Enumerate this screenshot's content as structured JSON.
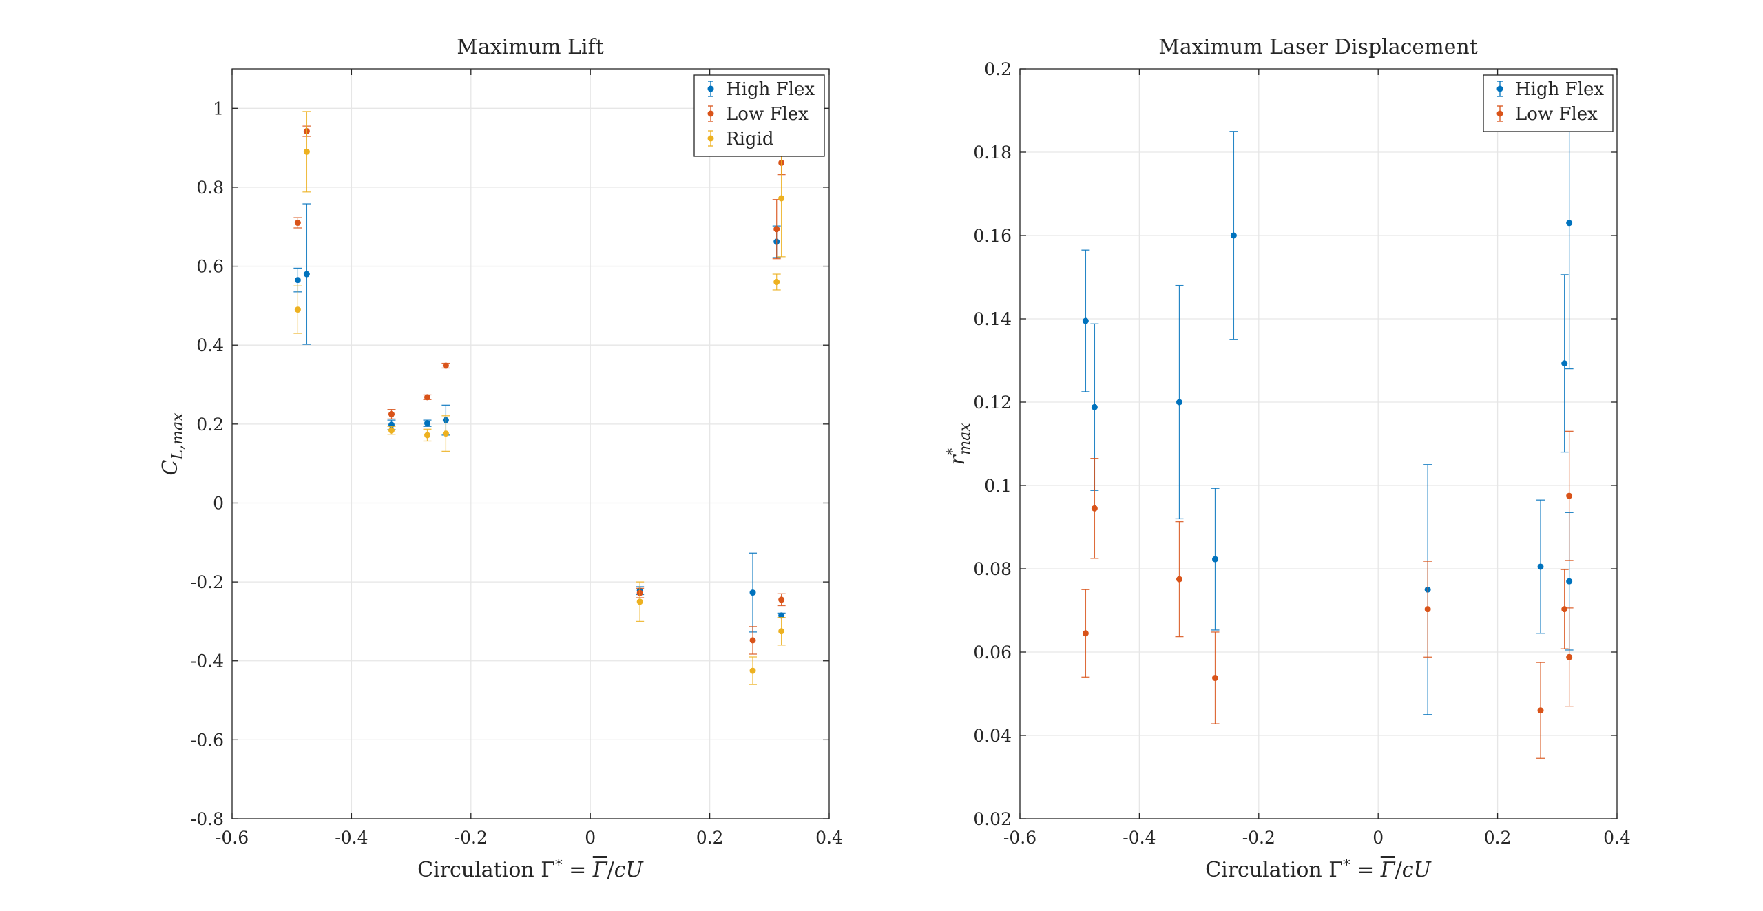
{
  "chart_data": [
    {
      "type": "scatter",
      "title": "Maximum Lift",
      "xlabel": "Circulation Γ* = Γ̄/cU",
      "ylabel": "C_L,max",
      "xlim": [
        -0.6,
        0.4
      ],
      "ylim": [
        -0.8,
        1.1
      ],
      "xticks": [
        -0.6,
        -0.4,
        -0.2,
        0,
        0.2,
        0.4
      ],
      "xtick_labels": [
        "-0.6",
        "-0.4",
        "-0.2",
        "0",
        "0.2",
        "0.4"
      ],
      "yticks": [
        -0.8,
        -0.6,
        -0.4,
        -0.2,
        0,
        0.2,
        0.4,
        0.6,
        0.8,
        1
      ],
      "ytick_labels": [
        "-0.8",
        "-0.6",
        "-0.4",
        "-0.2",
        "0",
        "0.2",
        "0.4",
        "0.6",
        "0.8",
        "1"
      ],
      "grid": true,
      "legend": "top-right",
      "series": [
        {
          "name": "High Flex",
          "color": "#0072BD",
          "points": [
            {
              "x": -0.49,
              "y": 0.565,
              "err": 0.03
            },
            {
              "x": -0.475,
              "y": 0.58,
              "err": 0.178
            },
            {
              "x": -0.333,
              "y": 0.198,
              "err": 0.012
            },
            {
              "x": -0.273,
              "y": 0.202,
              "err": 0.008
            },
            {
              "x": -0.242,
              "y": 0.21,
              "err": 0.038
            },
            {
              "x": 0.083,
              "y": -0.222,
              "err": 0.01
            },
            {
              "x": 0.272,
              "y": -0.227,
              "err": 0.1
            },
            {
              "x": 0.312,
              "y": 0.662,
              "err": 0.04
            },
            {
              "x": 0.32,
              "y": -0.285,
              "err": 0.006
            }
          ]
        },
        {
          "name": "Low Flex",
          "color": "#D95319",
          "points": [
            {
              "x": -0.49,
              "y": 0.71,
              "err": 0.013
            },
            {
              "x": -0.475,
              "y": 0.942,
              "err": 0.013
            },
            {
              "x": -0.333,
              "y": 0.225,
              "err": 0.012
            },
            {
              "x": -0.273,
              "y": 0.268,
              "err": 0.006
            },
            {
              "x": -0.242,
              "y": 0.348,
              "err": 0.006
            },
            {
              "x": 0.083,
              "y": -0.228,
              "err": 0.012
            },
            {
              "x": 0.272,
              "y": -0.348,
              "err": 0.035
            },
            {
              "x": 0.312,
              "y": 0.694,
              "err": 0.075
            },
            {
              "x": 0.32,
              "y": 0.862,
              "err": 0.03
            },
            {
              "x": 0.32,
              "y": -0.245,
              "err": 0.015
            }
          ]
        },
        {
          "name": "Rigid",
          "color": "#EDB120",
          "points": [
            {
              "x": -0.49,
              "y": 0.49,
              "err": 0.06
            },
            {
              "x": -0.475,
              "y": 0.89,
              "err": 0.102
            },
            {
              "x": -0.333,
              "y": 0.184,
              "err": 0.01
            },
            {
              "x": -0.273,
              "y": 0.172,
              "err": 0.015
            },
            {
              "x": -0.242,
              "y": 0.176,
              "err": 0.045
            },
            {
              "x": 0.083,
              "y": -0.25,
              "err": 0.05
            },
            {
              "x": 0.272,
              "y": -0.425,
              "err": 0.035
            },
            {
              "x": 0.312,
              "y": 0.56,
              "err": 0.02
            },
            {
              "x": 0.32,
              "y": 0.772,
              "err": 0.148
            },
            {
              "x": 0.32,
              "y": -0.325,
              "err": 0.035
            }
          ]
        }
      ]
    },
    {
      "type": "scatter",
      "title": "Maximum Laser Displacement",
      "xlabel": "Circulation Γ* = Γ̄/cU",
      "ylabel": "r*max",
      "xlim": [
        -0.6,
        0.4
      ],
      "ylim": [
        0.02,
        0.2
      ],
      "xticks": [
        -0.6,
        -0.4,
        -0.2,
        0,
        0.2,
        0.4
      ],
      "xtick_labels": [
        "-0.6",
        "-0.4",
        "-0.2",
        "0",
        "0.2",
        "0.4"
      ],
      "yticks": [
        0.02,
        0.04,
        0.06,
        0.08,
        0.1,
        0.12,
        0.14,
        0.16,
        0.18,
        0.2
      ],
      "ytick_labels": [
        "0.02",
        "0.04",
        "0.06",
        "0.08",
        "0.1",
        "0.12",
        "0.14",
        "0.16",
        "0.18",
        "0.2"
      ],
      "grid": true,
      "legend": "top-right",
      "series": [
        {
          "name": "High Flex",
          "color": "#0072BD",
          "points": [
            {
              "x": -0.49,
              "y": 0.1395,
              "err": 0.017
            },
            {
              "x": -0.475,
              "y": 0.1188,
              "err": 0.02
            },
            {
              "x": -0.333,
              "y": 0.12,
              "err": 0.028
            },
            {
              "x": -0.273,
              "y": 0.0823,
              "err": 0.017
            },
            {
              "x": -0.242,
              "y": 0.16,
              "err": 0.025
            },
            {
              "x": 0.083,
              "y": 0.075,
              "err": 0.03
            },
            {
              "x": 0.272,
              "y": 0.0805,
              "err": 0.016
            },
            {
              "x": 0.312,
              "y": 0.1293,
              "err": 0.0213
            },
            {
              "x": 0.32,
              "y": 0.163,
              "err": 0.035
            },
            {
              "x": 0.32,
              "y": 0.077,
              "err": 0.0165
            }
          ]
        },
        {
          "name": "Low Flex",
          "color": "#D95319",
          "points": [
            {
              "x": -0.49,
              "y": 0.0645,
              "err": 0.0105
            },
            {
              "x": -0.475,
              "y": 0.0945,
              "err": 0.012
            },
            {
              "x": -0.333,
              "y": 0.0775,
              "err": 0.0138
            },
            {
              "x": -0.273,
              "y": 0.0538,
              "err": 0.011
            },
            {
              "x": 0.083,
              "y": 0.0703,
              "err": 0.0115
            },
            {
              "x": 0.272,
              "y": 0.046,
              "err": 0.0115
            },
            {
              "x": 0.312,
              "y": 0.0703,
              "err": 0.0095
            },
            {
              "x": 0.32,
              "y": 0.0975,
              "err": 0.0155
            },
            {
              "x": 0.32,
              "y": 0.0588,
              "err": 0.0118
            }
          ]
        }
      ]
    }
  ]
}
